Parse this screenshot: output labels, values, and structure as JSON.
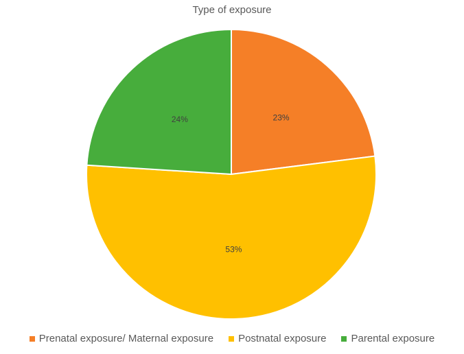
{
  "chart_data": {
    "type": "pie",
    "title": "Type of exposure",
    "categories": [
      "Prenatal exposure/ Maternal exposure",
      "Postnatal exposure",
      "Parental exposure"
    ],
    "values": [
      23,
      53,
      24
    ],
    "labels": [
      "23%",
      "53%",
      "24%"
    ],
    "colors": [
      "#f57f27",
      "#ffc000",
      "#47ad3c"
    ],
    "legend_position": "bottom"
  }
}
